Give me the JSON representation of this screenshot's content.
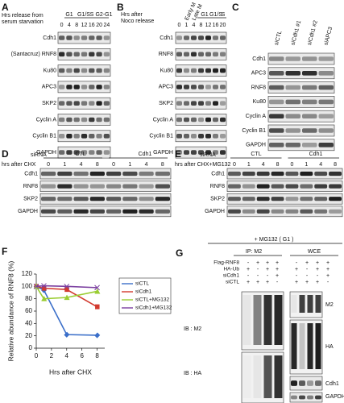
{
  "panels": {
    "A": {
      "label": "A",
      "header": [
        "Hrs release from",
        "serum starvation"
      ],
      "phases": [
        "G1",
        "G1/S",
        "S",
        "G2-G1"
      ],
      "times": [
        "0",
        "4",
        "8",
        "12",
        "16",
        "20",
        "24"
      ],
      "rows": [
        "Cdh1",
        "(Santacruz) RNF8",
        "Ku80",
        "APC3",
        "SKP2",
        "Cyclin A",
        "Cyclin B1",
        "GAPDH"
      ]
    },
    "B": {
      "label": "B",
      "header": [
        "Hrs after",
        "Noco release"
      ],
      "early": [
        "Early M",
        "Late M"
      ],
      "phases": [
        "G1",
        "G1/S",
        "S"
      ],
      "times": [
        "0",
        "1",
        "4",
        "8",
        "12",
        "16",
        "20"
      ],
      "rows": [
        "Cdh1",
        "RNF8",
        "Ku80",
        "APC3",
        "SKP2",
        "Cyclin A",
        "Cyclin B1",
        "GAPDH"
      ]
    },
    "C": {
      "label": "C",
      "lanes": [
        "siCTL",
        "siCdh1 #1",
        "siCdh1 #2",
        "siAPC3"
      ],
      "rows": [
        "Cdh1",
        "APC3",
        "RNF8",
        "Ku80",
        "Cyclin A",
        "Cyclin B1",
        "GAPDH"
      ]
    },
    "D": {
      "label": "D",
      "sirna_label": "siRNA",
      "groups": [
        "CTL",
        "Cdh1"
      ],
      "time_label": "hrs after CHX",
      "times": [
        "0",
        "1",
        "4",
        "8",
        "0",
        "1",
        "4",
        "8"
      ],
      "rows": [
        "Cdh1",
        "RNF8",
        "SKP2",
        "GAPDH"
      ]
    },
    "E": {
      "label": "E",
      "sirna_label": "siRNA",
      "groups": [
        "CTL",
        "Cdh1"
      ],
      "time_label": "hrs after CHX+MG132",
      "times": [
        "0",
        "1",
        "4",
        "8",
        "0",
        "1",
        "4",
        "8"
      ],
      "rows": [
        "Cdh1",
        "RNF8",
        "SKP2",
        "GAPDH"
      ]
    },
    "G": {
      "label": "G",
      "treatment": "+ MG132 ( G1 )",
      "ip": "IP: M2",
      "wce": "WCE",
      "conditions": [
        {
          "name": "Flag-RNF8",
          "signs": [
            "-",
            "+",
            "+",
            "+"
          ]
        },
        {
          "name": "HA-Ub",
          "signs": [
            "+",
            "-",
            "+",
            "+"
          ]
        },
        {
          "name": "siCdh1",
          "signs": [
            "-",
            "-",
            "-",
            "+"
          ]
        },
        {
          "name": "siCTL",
          "signs": [
            "+",
            "+",
            "+",
            "-"
          ]
        }
      ],
      "ib_labels": [
        "IB : M2",
        "IB : HA"
      ],
      "right_labels": [
        "M2",
        "HA",
        "Cdh1",
        "GAPDH"
      ]
    }
  },
  "chart_data": {
    "type": "line",
    "panel_label": "F",
    "x_label": "Hrs after CHX",
    "y_label": "Relative abundance of RNF8 (%)",
    "x": [
      0,
      1,
      4,
      8
    ],
    "series": [
      {
        "name": "siCTL",
        "color": "#3b6fc9",
        "marker": "diamond",
        "values": [
          100,
          94,
          22,
          21
        ]
      },
      {
        "name": "siCdh1",
        "color": "#d23a2f",
        "marker": "square",
        "values": [
          100,
          97,
          95,
          67
        ]
      },
      {
        "name": "siCTL+MG132",
        "color": "#9acd32",
        "marker": "triangle",
        "values": [
          100,
          80,
          82,
          92
        ]
      },
      {
        "name": "siCdh1+MG132",
        "color": "#7b3fa0",
        "marker": "cross",
        "values": [
          100,
          101,
          100,
          98
        ]
      }
    ],
    "xlim": [
      0,
      9
    ],
    "ylim": [
      0,
      120
    ],
    "xticks": [
      0,
      2,
      4,
      6,
      8
    ],
    "yticks": [
      0,
      20,
      40,
      60,
      80,
      100,
      120
    ],
    "legend": "right"
  }
}
